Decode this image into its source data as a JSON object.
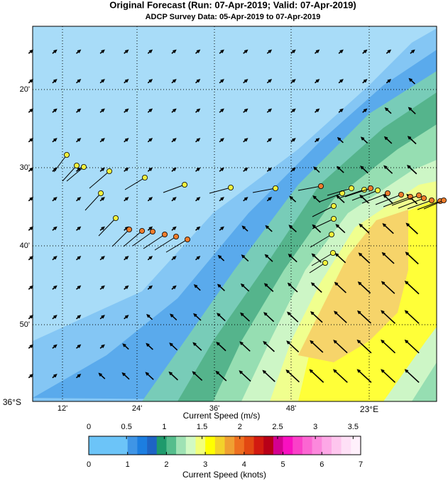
{
  "title": "Original Forecast (Run: 07-Apr-2019; Valid: 07-Apr-2019)",
  "subtitle": "ADCP Survey Data: 05-Apr-2019 to 07-Apr-2019",
  "map": {
    "lat_labels": [
      "20'",
      "30'",
      "40'",
      "50'",
      "36°S"
    ],
    "lon_labels": [
      "12'",
      "24'",
      "36'",
      "48'",
      "23°E"
    ]
  },
  "colorbar": {
    "label_top": "Current Speed (m/s)",
    "label_bottom": "Current Speed (knots)",
    "ms_lim": [
      0,
      3.6
    ],
    "ms_ticks": [
      0,
      0.5,
      1,
      1.5,
      2,
      2.5,
      3,
      3.5
    ],
    "knots_lim": [
      0,
      7
    ],
    "knots_ticks": [
      0,
      1,
      2,
      3,
      4,
      5,
      6,
      7
    ],
    "colors": [
      "#6cc4f8",
      "#3f95e6",
      "#1c7ee0",
      "#1e64c4",
      "#1f9a6c",
      "#55bd8c",
      "#9fe2b4",
      "#d2fac4",
      "#f2ff7a",
      "#ffff00",
      "#f3d22a",
      "#f0a032",
      "#ee7020",
      "#e24812",
      "#d21a10",
      "#b80018",
      "#d40090",
      "#f810c0",
      "#fa40c8",
      "#fb66d2",
      "#fc88dc",
      "#fda8e6",
      "#fec6ee",
      "#fee0f6",
      "#fff0fb"
    ]
  }
}
